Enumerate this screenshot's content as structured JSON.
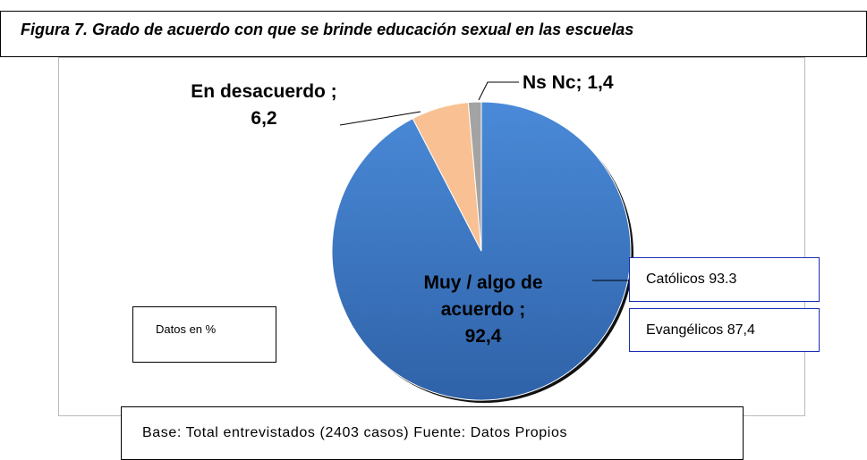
{
  "chart_data": {
    "type": "pie",
    "title": "Figura 7. Grado de acuerdo con que se brinde educación sexual en las escuelas",
    "categories": [
      "Muy / algo de acuerdo ;",
      "En desacuerdo ;",
      "Ns Nc;"
    ],
    "values": [
      92.4,
      6.2,
      1.4
    ],
    "value_labels": [
      "92,4",
      "6,2",
      "1,4"
    ],
    "colors": [
      "#3d7dcb",
      "#f9c193",
      "#a3a3a3"
    ],
    "annotations": [
      "Católicos 93.3",
      "Evangélicos 87,4",
      "Datos en %",
      "Base: Total entrevistados (2403 casos) Fuente: Datos Propios"
    ]
  }
}
